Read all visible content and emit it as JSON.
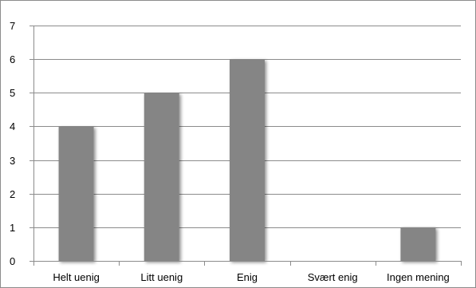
{
  "chart_data": {
    "type": "bar",
    "categories": [
      "Helt uenig",
      "Litt uenig",
      "Enig",
      "Svært enig",
      "Ingen mening"
    ],
    "values": [
      4,
      5,
      6,
      0,
      1
    ],
    "ylim": [
      0,
      7
    ],
    "yticks": [
      "0",
      "1",
      "2",
      "3",
      "4",
      "5",
      "6",
      "7"
    ],
    "grid": true,
    "legend": "none",
    "bar_color": "#858585",
    "grid_color": "#8c8c8c"
  }
}
